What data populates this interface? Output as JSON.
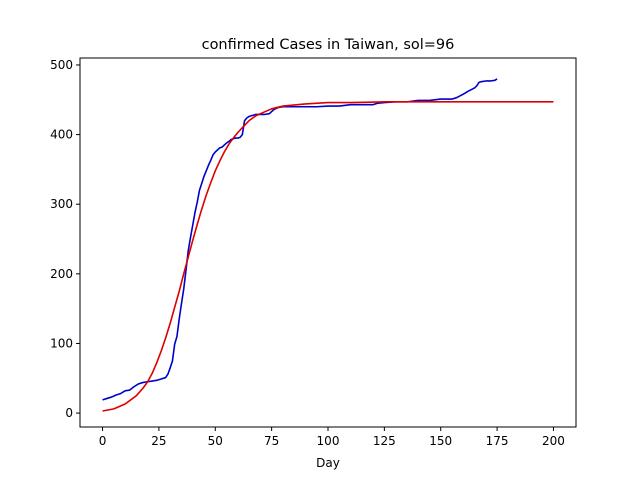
{
  "chart_data": {
    "type": "line",
    "title": "confirmed Cases in Taiwan, sol=96",
    "xlabel": "Day",
    "ylabel": "",
    "xlim": [
      -10,
      210
    ],
    "ylim": [
      -20,
      510
    ],
    "xticks": [
      0,
      25,
      50,
      75,
      100,
      125,
      150,
      175,
      200
    ],
    "yticks": [
      0,
      100,
      200,
      300,
      400,
      500
    ],
    "grid": false,
    "series": [
      {
        "color": "#0000cc",
        "x": [
          0,
          2,
          4,
          6,
          8,
          10,
          12,
          14,
          16,
          18,
          20,
          22,
          24,
          26,
          28,
          29,
          30,
          31,
          32,
          33,
          34,
          35,
          36,
          37,
          38,
          39,
          40,
          41,
          42,
          43,
          44,
          45,
          46,
          47,
          48,
          49,
          50,
          51,
          52,
          53,
          54,
          55,
          56,
          57,
          58,
          59,
          60,
          61,
          62,
          63,
          64,
          65,
          66,
          67,
          68,
          70,
          72,
          74,
          76,
          78,
          80,
          85,
          90,
          95,
          100,
          105,
          110,
          115,
          120,
          122,
          125,
          130,
          135,
          140,
          145,
          150,
          155,
          157,
          160,
          162,
          165,
          166,
          167,
          168,
          170,
          172,
          174,
          175
        ],
        "y": [
          19,
          21,
          23,
          26,
          28,
          32,
          33,
          38,
          42,
          44,
          45,
          46,
          47,
          49,
          51,
          56,
          65,
          75,
          99,
          110,
          135,
          157,
          178,
          205,
          233,
          252,
          270,
          288,
          303,
          320,
          330,
          340,
          348,
          356,
          363,
          371,
          375,
          378,
          381,
          382,
          385,
          388,
          390,
          393,
          394,
          395,
          395,
          396,
          400,
          420,
          424,
          426,
          427,
          428,
          429,
          429,
          429,
          430,
          436,
          439,
          440,
          440,
          440,
          440,
          441,
          441,
          443,
          443,
          443,
          445,
          446,
          447,
          447,
          449,
          449,
          451,
          451,
          453,
          458,
          462,
          467,
          470,
          475,
          476,
          477,
          477,
          478,
          480
        ]
      },
      {
        "color": "#dd0000",
        "x": [
          0,
          5,
          10,
          15,
          18,
          20,
          22,
          24,
          26,
          28,
          30,
          32,
          34,
          36,
          38,
          40,
          42,
          44,
          46,
          48,
          50,
          52,
          54,
          56,
          58,
          60,
          62,
          65,
          68,
          70,
          75,
          80,
          90,
          100,
          110,
          125,
          150,
          175,
          200
        ],
        "y": [
          3,
          6,
          13,
          25,
          36,
          45,
          57,
          72,
          89,
          108,
          129,
          152,
          175,
          200,
          224,
          248,
          271,
          293,
          313,
          331,
          348,
          362,
          375,
          386,
          395,
          403,
          410,
          420,
          427,
          430,
          437,
          441,
          444,
          446,
          446,
          447,
          447,
          447,
          447
        ]
      }
    ]
  }
}
